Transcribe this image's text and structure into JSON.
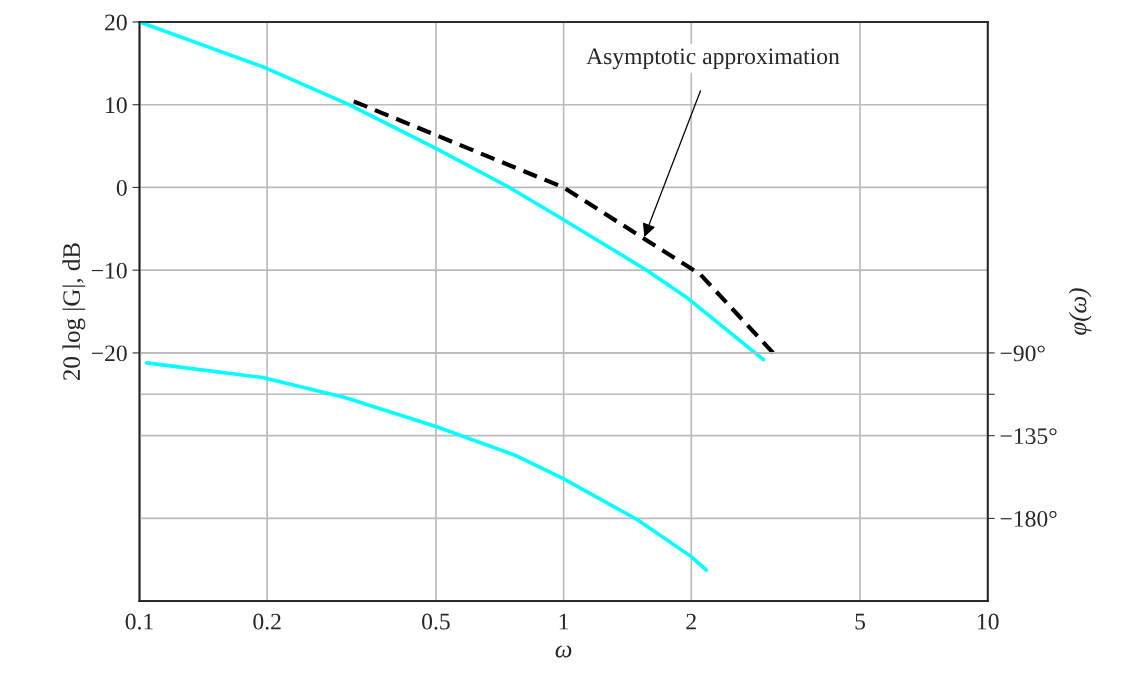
{
  "chart_data": {
    "type": "line",
    "xlabel": "ω",
    "ylabel": "20 log |G|, dB",
    "y2label": "φ(ω)",
    "log": "x",
    "xlim": [
      0.1,
      10
    ],
    "xticks": [
      0.1,
      0.2,
      0.5,
      1,
      2,
      5,
      10
    ],
    "ylim": [
      -50,
      20
    ],
    "yticks": [
      20,
      10,
      0,
      {
        "value": -10,
        "label": "−10"
      },
      {
        "value": -20,
        "label": "−20"
      }
    ],
    "y2lim": [
      -225,
      90
    ],
    "y2ticks": [
      {
        "value": -90,
        "label": "−90°"
      },
      {
        "value": -112.5,
        "label": null
      },
      {
        "value": -135,
        "label": "−135°"
      },
      {
        "value": -180,
        "label": "−180°"
      }
    ],
    "grid": true,
    "series": [
      {
        "color": "#00ffff",
        "x": [
          0.1,
          0.195,
          0.312,
          0.492,
          0.745,
          0.978,
          1.57,
          1.94,
          2.96
        ],
        "values": [
          20,
          14.6,
          10,
          4.9,
          0,
          -3.6,
          -10,
          -13.2,
          -20.8
        ]
      },
      {
        "color": "#000000",
        "line_style": "dashed",
        "x": [
          0.32,
          1,
          2.1,
          3.12
        ],
        "values": [
          10.4,
          0,
          -10.5,
          -20
        ]
      },
      {
        "color": "#00ffff",
        "axis": "y2",
        "x": [
          0.104,
          0.195,
          0.305,
          0.498,
          0.765,
          0.993,
          1.49,
          2.0,
          2.17
        ],
        "values": [
          -95.4,
          -103.4,
          -114.2,
          -129.9,
          -145.5,
          -158.1,
          -180.6,
          -200.8,
          -208.1
        ]
      }
    ],
    "annotations": [
      {
        "text": "Asymptotic approximation",
        "x": 1.55,
        "y": -6
      }
    ]
  }
}
